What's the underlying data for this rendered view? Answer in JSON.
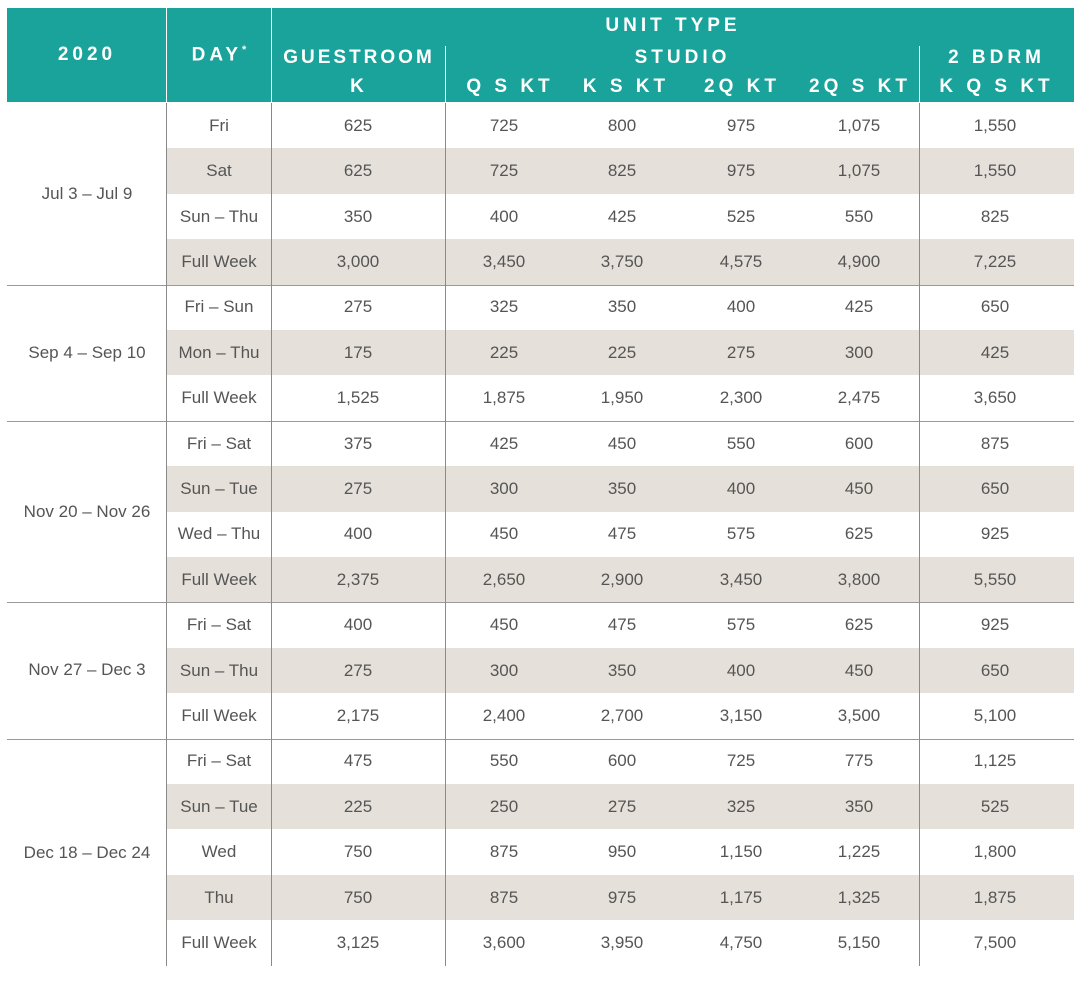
{
  "header": {
    "year": "2020",
    "day": "DAY",
    "day_mark": "*",
    "unit_type": "UNIT TYPE",
    "studio": "STUDIO",
    "guestroom": "GUESTROOM",
    "guestroom_sub": "K",
    "studio_q_s_kt": "Q S KT",
    "studio_k_s_kt": "K S KT",
    "studio_2q_kt": "2Q KT",
    "studio_2q_s_kt": "2Q S KT",
    "bdrm": "2 BDRM",
    "bdrm_sub": "K Q S KT"
  },
  "groups": [
    {
      "label": "Jul 3 – Jul 9",
      "rows": [
        {
          "day": "Fri",
          "values": [
            "625",
            "725",
            "800",
            "975",
            "1,075",
            "1,550"
          ]
        },
        {
          "day": "Sat",
          "values": [
            "625",
            "725",
            "825",
            "975",
            "1,075",
            "1,550"
          ]
        },
        {
          "day": "Sun – Thu",
          "values": [
            "350",
            "400",
            "425",
            "525",
            "550",
            "825"
          ]
        },
        {
          "day": "Full Week",
          "values": [
            "3,000",
            "3,450",
            "3,750",
            "4,575",
            "4,900",
            "7,225"
          ]
        }
      ]
    },
    {
      "label": "Sep 4 – Sep 10",
      "rows": [
        {
          "day": "Fri – Sun",
          "values": [
            "275",
            "325",
            "350",
            "400",
            "425",
            "650"
          ]
        },
        {
          "day": "Mon – Thu",
          "values": [
            "175",
            "225",
            "225",
            "275",
            "300",
            "425"
          ]
        },
        {
          "day": "Full Week",
          "values": [
            "1,525",
            "1,875",
            "1,950",
            "2,300",
            "2,475",
            "3,650"
          ]
        }
      ]
    },
    {
      "label": "Nov 20 – Nov 26",
      "rows": [
        {
          "day": "Fri – Sat",
          "values": [
            "375",
            "425",
            "450",
            "550",
            "600",
            "875"
          ]
        },
        {
          "day": "Sun – Tue",
          "values": [
            "275",
            "300",
            "350",
            "400",
            "450",
            "650"
          ]
        },
        {
          "day": "Wed – Thu",
          "values": [
            "400",
            "450",
            "475",
            "575",
            "625",
            "925"
          ]
        },
        {
          "day": "Full Week",
          "values": [
            "2,375",
            "2,650",
            "2,900",
            "3,450",
            "3,800",
            "5,550"
          ]
        }
      ]
    },
    {
      "label": "Nov 27 – Dec 3",
      "rows": [
        {
          "day": "Fri – Sat",
          "values": [
            "400",
            "450",
            "475",
            "575",
            "625",
            "925"
          ]
        },
        {
          "day": "Sun – Thu",
          "values": [
            "275",
            "300",
            "350",
            "400",
            "450",
            "650"
          ]
        },
        {
          "day": "Full Week",
          "values": [
            "2,175",
            "2,400",
            "2,700",
            "3,150",
            "3,500",
            "5,100"
          ]
        }
      ]
    },
    {
      "label": "Dec 18 – Dec 24",
      "rows": [
        {
          "day": "Fri – Sat",
          "values": [
            "475",
            "550",
            "600",
            "725",
            "775",
            "1,125"
          ]
        },
        {
          "day": "Sun – Tue",
          "values": [
            "225",
            "250",
            "275",
            "325",
            "350",
            "525"
          ]
        },
        {
          "day": "Wed",
          "values": [
            "750",
            "875",
            "950",
            "1,150",
            "1,225",
            "1,800"
          ]
        },
        {
          "day": "Thu",
          "values": [
            "750",
            "875",
            "975",
            "1,175",
            "1,325",
            "1,875"
          ]
        },
        {
          "day": "Full Week",
          "values": [
            "3,125",
            "3,600",
            "3,950",
            "4,750",
            "5,150",
            "7,500"
          ]
        }
      ]
    }
  ],
  "colors": {
    "header": "#1aa39a",
    "shade": "#e5e1da",
    "text": "#555555"
  }
}
